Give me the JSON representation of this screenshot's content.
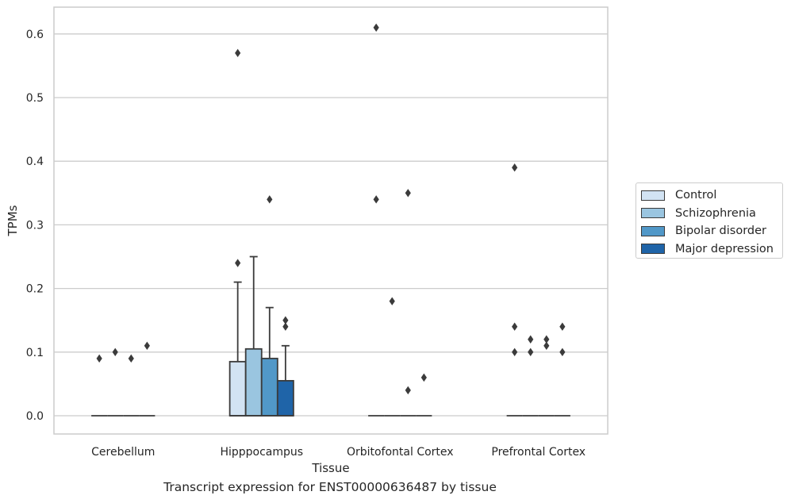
{
  "chart_data": {
    "type": "box",
    "xlabel": "Tissue",
    "ylabel": "TPMs",
    "caption": "Transcript expression for ENST00000636487 by tissue",
    "categories": [
      "Cerebellum",
      "Hipppocampus",
      "Orbitofontal Cortex",
      "Prefrontal Cortex"
    ],
    "ylim": [
      -0.03,
      0.64
    ],
    "yticks": [
      "0.0",
      "0.1",
      "0.2",
      "0.3",
      "0.4",
      "0.5",
      "0.6"
    ],
    "grid": true,
    "legend_position": "right",
    "series": [
      {
        "name": "Control",
        "color": "#d2e3f3",
        "boxes": [
          {
            "q1": 0,
            "median": 0,
            "q3": 0,
            "whisker_low": 0,
            "whisker_high": 0,
            "outliers": [
              0.09
            ]
          },
          {
            "q1": 0,
            "median": 0,
            "q3": 0.085,
            "whisker_low": 0,
            "whisker_high": 0.21,
            "outliers": [
              0.24,
              0.57
            ]
          },
          {
            "q1": 0,
            "median": 0,
            "q3": 0,
            "whisker_low": 0,
            "whisker_high": 0,
            "outliers": [
              0.34,
              0.61
            ]
          },
          {
            "q1": 0,
            "median": 0,
            "q3": 0,
            "whisker_low": 0,
            "whisker_high": 0,
            "outliers": [
              0.1,
              0.14,
              0.39
            ]
          }
        ]
      },
      {
        "name": "Schizophrenia",
        "color": "#9ac5e0",
        "boxes": [
          {
            "q1": 0,
            "median": 0,
            "q3": 0,
            "whisker_low": 0,
            "whisker_high": 0,
            "outliers": [
              0.1
            ]
          },
          {
            "q1": 0,
            "median": 0,
            "q3": 0.105,
            "whisker_low": 0,
            "whisker_high": 0.25,
            "outliers": []
          },
          {
            "q1": 0,
            "median": 0,
            "q3": 0,
            "whisker_low": 0,
            "whisker_high": 0,
            "outliers": [
              0.18
            ]
          },
          {
            "q1": 0,
            "median": 0,
            "q3": 0,
            "whisker_low": 0,
            "whisker_high": 0,
            "outliers": [
              0.1,
              0.12
            ]
          }
        ]
      },
      {
        "name": "Bipolar disorder",
        "color": "#5198c8",
        "boxes": [
          {
            "q1": 0,
            "median": 0,
            "q3": 0,
            "whisker_low": 0,
            "whisker_high": 0,
            "outliers": [
              0.09
            ]
          },
          {
            "q1": 0,
            "median": 0,
            "q3": 0.09,
            "whisker_low": 0,
            "whisker_high": 0.17,
            "outliers": [
              0.34
            ]
          },
          {
            "q1": 0,
            "median": 0,
            "q3": 0,
            "whisker_low": 0,
            "whisker_high": 0,
            "outliers": [
              0.04,
              0.35
            ]
          },
          {
            "q1": 0,
            "median": 0,
            "q3": 0,
            "whisker_low": 0,
            "whisker_high": 0,
            "outliers": [
              0.11,
              0.12
            ]
          }
        ]
      },
      {
        "name": "Major depression",
        "color": "#1f64a8",
        "boxes": [
          {
            "q1": 0,
            "median": 0,
            "q3": 0,
            "whisker_low": 0,
            "whisker_high": 0,
            "outliers": [
              0.11
            ]
          },
          {
            "q1": 0,
            "median": 0,
            "q3": 0.055,
            "whisker_low": 0,
            "whisker_high": 0.11,
            "outliers": [
              0.14,
              0.15
            ]
          },
          {
            "q1": 0,
            "median": 0,
            "q3": 0,
            "whisker_low": 0,
            "whisker_high": 0,
            "outliers": [
              0.06
            ]
          },
          {
            "q1": 0,
            "median": 0,
            "q3": 0,
            "whisker_low": 0,
            "whisker_high": 0,
            "outliers": [
              0.1,
              0.14
            ]
          }
        ]
      }
    ]
  }
}
